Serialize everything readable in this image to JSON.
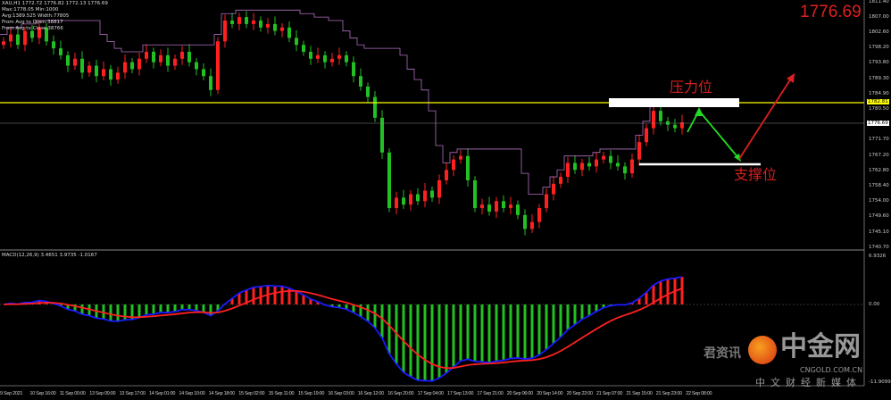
{
  "header": {
    "symbol_line": "XAU,H1  1772.72 1776.82 1772.13 1776.69",
    "info_lines": [
      "Max:1778.05 Min:1000",
      "Avg:1389.525 Width:77805",
      "From Avg to Open:38817",
      "From Avg to Close:38766"
    ],
    "current_price": "1776.69"
  },
  "colors": {
    "bull": "#ff2020",
    "bear": "#22c022",
    "resistance_line": "#ffff00",
    "channel": "#b070c0",
    "macd_line": "#1a1aff",
    "signal_line": "#ff2020",
    "big_price": "#e02020"
  },
  "annotations": {
    "resistance_label": "压力位",
    "support_label": "支撑位",
    "resistance_price": 1782.81
  },
  "price_axis": {
    "labels": [
      "1811.40",
      "1807.00",
      "1802.60",
      "1798.20",
      "1793.80",
      "1789.30",
      "1784.90",
      "1780.50",
      "1771.70",
      "1767.20",
      "1762.80",
      "1758.40",
      "1754.00",
      "1749.60",
      "1745.10",
      "1740.70"
    ],
    "highlight_resistance": "1782.81",
    "highlight_current": "1776.69",
    "range": [
      1740.7,
      1811.4
    ]
  },
  "macd": {
    "title": "MACD(12,26,9) 3.4651 3.9735 -1.0167",
    "axis_labels": [
      "6.9326",
      "0.00",
      "-11.9099"
    ],
    "range": [
      -11.9099,
      6.9326
    ]
  },
  "time_axis": [
    "9 Sep 2021",
    "10 Sep 16:00",
    "11 Sep 00:00",
    "13 Sep 09:00",
    "13 Sep 17:00",
    "14 Sep 01:00",
    "14 Sep 10:00",
    "14 Sep 18:00",
    "15 Sep 02:00",
    "15 Sep 11:00",
    "15 Sep 19:00",
    "16 Sep 03:00",
    "16 Sep 12:00",
    "16 Sep 20:00",
    "17 Sep 04:00",
    "17 Sep 13:00",
    "17 Sep 21:00",
    "20 Sep 06:00",
    "20 Sep 14:00",
    "20 Sep 22:00",
    "21 Sep 07:00",
    "21 Sep 15:00",
    "21 Sep 23:00",
    "22 Sep 08:00"
  ],
  "chart_data": {
    "type": "candlestick",
    "ylim": [
      1740.7,
      1811.4
    ],
    "closes": [
      1800,
      1802,
      1799,
      1803,
      1801,
      1804,
      1800,
      1798,
      1796,
      1793,
      1795,
      1791,
      1793,
      1790,
      1792,
      1789,
      1791,
      1794,
      1792,
      1795,
      1797,
      1794,
      1796,
      1793,
      1795,
      1797,
      1794,
      1792,
      1790,
      1786,
      1800,
      1806,
      1805,
      1807,
      1805,
      1806,
      1804,
      1805,
      1803,
      1804,
      1801,
      1799,
      1797,
      1795,
      1796,
      1794,
      1795,
      1796,
      1794,
      1790,
      1787,
      1784,
      1778,
      1768,
      1752,
      1755,
      1753,
      1756,
      1754,
      1757,
      1755,
      1760,
      1763,
      1766,
      1767,
      1760,
      1752,
      1753,
      1751,
      1754,
      1752,
      1753,
      1750,
      1746,
      1748,
      1752,
      1756,
      1759,
      1761,
      1765,
      1763,
      1765,
      1764,
      1766,
      1767,
      1765,
      1764,
      1762,
      1766,
      1771,
      1775,
      1780,
      1777,
      1776,
      1775,
      1776.69
    ]
  },
  "watermark": {
    "brand": "中金网",
    "domain": "CNGOLD.COM.CN",
    "slogan": "中文财经新媒体",
    "wechat": "君资讯"
  }
}
